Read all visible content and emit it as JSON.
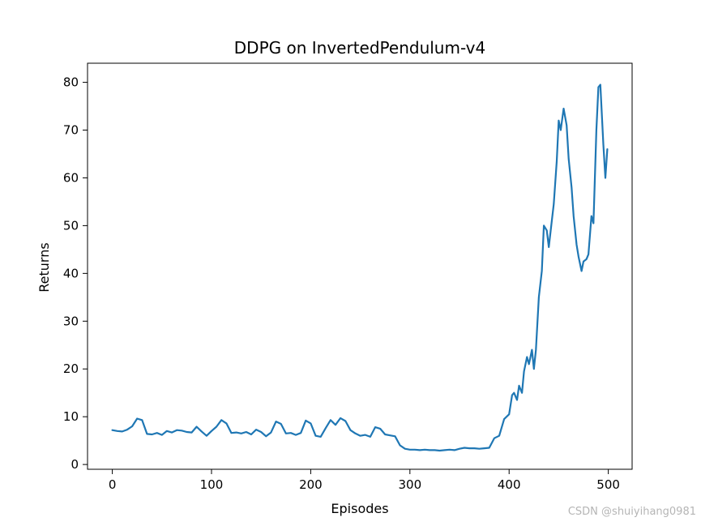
{
  "chart_data": {
    "type": "line",
    "title": "DDPG on InvertedPendulum-v4",
    "xlabel": "Episodes",
    "ylabel": "Returns",
    "xlim": [
      -25,
      524
    ],
    "ylim": [
      -1,
      84
    ],
    "xticks": [
      0,
      100,
      200,
      300,
      400,
      500
    ],
    "yticks": [
      0,
      10,
      20,
      30,
      40,
      50,
      60,
      70,
      80
    ],
    "grid": false,
    "legend": "none",
    "line_color": "#1f77b4",
    "series": [
      {
        "x": [
          0,
          5,
          10,
          15,
          20,
          25,
          30,
          35,
          40,
          45,
          50,
          55,
          60,
          65,
          70,
          75,
          80,
          85,
          90,
          95,
          100,
          105,
          110,
          115,
          120,
          125,
          130,
          135,
          140,
          145,
          150,
          155,
          160,
          165,
          170,
          175,
          180,
          185,
          190,
          195,
          200,
          205,
          210,
          215,
          220,
          225,
          230,
          235,
          240,
          245,
          250,
          255,
          260,
          265,
          270,
          275,
          280,
          285,
          290,
          295,
          300,
          305,
          310,
          315,
          320,
          325,
          330,
          335,
          340,
          345,
          350,
          355,
          360,
          365,
          370,
          375,
          380,
          385,
          390,
          395,
          400,
          403,
          405,
          408,
          410,
          413,
          415,
          418,
          420,
          423,
          425,
          427,
          430,
          433,
          435,
          438,
          440,
          443,
          445,
          448,
          450,
          452,
          455,
          458,
          460,
          463,
          465,
          468,
          470,
          473,
          475,
          478,
          480,
          483,
          485,
          488,
          490,
          492,
          495,
          497,
          499
        ],
        "y": [
          7.2,
          7.0,
          6.9,
          7.3,
          8.0,
          9.6,
          9.3,
          6.4,
          6.3,
          6.6,
          6.2,
          7.0,
          6.7,
          7.2,
          7.1,
          6.8,
          6.7,
          7.9,
          6.9,
          6.0,
          7.0,
          7.9,
          9.3,
          8.6,
          6.6,
          6.7,
          6.5,
          6.8,
          6.3,
          7.3,
          6.8,
          5.9,
          6.7,
          9.0,
          8.5,
          6.5,
          6.6,
          6.2,
          6.6,
          9.2,
          8.6,
          6.0,
          5.8,
          7.6,
          9.3,
          8.3,
          9.7,
          9.1,
          7.2,
          6.5,
          6.0,
          6.2,
          5.8,
          7.8,
          7.5,
          6.3,
          6.1,
          5.9,
          4.0,
          3.3,
          3.1,
          3.1,
          3.0,
          3.1,
          3.0,
          3.0,
          2.9,
          3.0,
          3.1,
          3.0,
          3.3,
          3.5,
          3.4,
          3.4,
          3.3,
          3.4,
          3.5,
          5.5,
          6.0,
          9.5,
          10.5,
          14.5,
          15.0,
          13.5,
          16.5,
          15.0,
          19.5,
          22.5,
          21.0,
          24.0,
          20.0,
          24.0,
          35.0,
          40.5,
          50.0,
          49.0,
          45.5,
          51.0,
          54.5,
          63.5,
          72.0,
          70.0,
          74.5,
          71.0,
          64.0,
          58.0,
          52.0,
          46.0,
          43.5,
          40.5,
          42.5,
          43.0,
          44.0,
          52.0,
          50.5,
          70.0,
          79.0,
          79.5,
          67.0,
          60.0,
          66.0
        ]
      }
    ]
  },
  "watermark": "CSDN @shuiyihang0981"
}
